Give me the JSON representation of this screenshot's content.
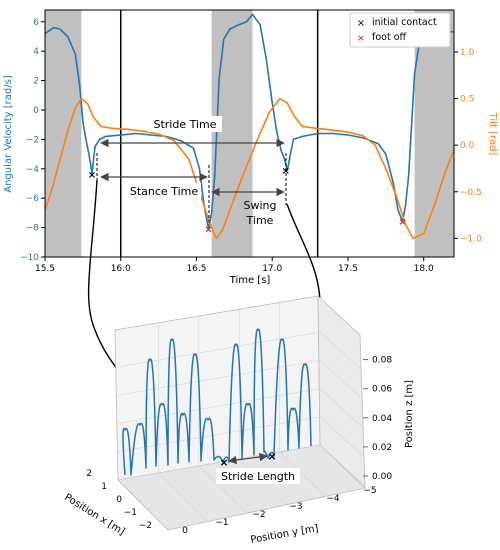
{
  "chart_data": [
    {
      "type": "line",
      "xlabel": "Time [s]",
      "ylabel": "Angular Velocity [rad/s]",
      "y2label": "Tilt [rad]",
      "xlim": [
        15.5,
        18.2
      ],
      "ylim": [
        -10,
        6.8
      ],
      "y2lim": [
        -1.2,
        1.45
      ],
      "xticks": [
        15.5,
        16.0,
        16.5,
        17.0,
        17.5,
        18.0
      ],
      "xtick_labels": [
        "15.5",
        "16.0",
        "16.5",
        "17.0",
        "17.5",
        "18.0"
      ],
      "yticks": [
        -10,
        -8,
        -6,
        -4,
        -2,
        0,
        2,
        4,
        6
      ],
      "ytick_labels": [
        "−10",
        "−8",
        "−6",
        "−4",
        "−2",
        "0",
        "2",
        "4",
        "6"
      ],
      "y2ticks": [
        -1.0,
        -0.5,
        0.0,
        0.5,
        1.0
      ],
      "y2tick_labels": [
        "−1.0",
        "−0.5",
        "0.0",
        "0.5",
        "1.0"
      ],
      "shaded_regions": [
        [
          15.5,
          15.74
        ],
        [
          16.6,
          16.87
        ],
        [
          17.94,
          18.2
        ]
      ],
      "vertical_lines": [
        16.0,
        17.3
      ],
      "series": [
        {
          "color": "#1f77b4",
          "axis": "left",
          "x": [
            15.5,
            15.56,
            15.6,
            15.65,
            15.7,
            15.73,
            15.75,
            15.77,
            15.79,
            15.81,
            15.83,
            15.86,
            15.9,
            16.0,
            16.1,
            16.2,
            16.3,
            16.4,
            16.48,
            16.52,
            16.55,
            16.58,
            16.6,
            16.62,
            16.65,
            16.68,
            16.72,
            16.78,
            16.83,
            16.87,
            16.92,
            16.96,
            17.0,
            17.03,
            17.06,
            17.08,
            17.1,
            17.12,
            17.14,
            17.2,
            17.3,
            17.4,
            17.5,
            17.6,
            17.7,
            17.75,
            17.8,
            17.83,
            17.86,
            17.88,
            17.9,
            17.92,
            17.94,
            17.97,
            18.0,
            18.05,
            18.1,
            18.15,
            18.2
          ],
          "y": [
            5.2,
            5.6,
            5.5,
            5.0,
            3.8,
            1.6,
            -0.8,
            -2.0,
            -3.0,
            -4.3,
            -2.5,
            -2.0,
            -1.8,
            -1.7,
            -1.6,
            -1.7,
            -1.8,
            -2.1,
            -2.6,
            -4.0,
            -6.5,
            -8.1,
            -7.0,
            -4.5,
            2.2,
            4.8,
            5.5,
            5.8,
            6.0,
            6.5,
            5.8,
            3.5,
            0.5,
            -1.5,
            -2.8,
            -3.3,
            -4.1,
            -3.0,
            -2.0,
            -1.8,
            -1.6,
            -1.6,
            -1.7,
            -1.9,
            -2.3,
            -3.0,
            -5.0,
            -6.8,
            -7.6,
            -6.5,
            -4.5,
            -1.0,
            2.5,
            4.5,
            5.0,
            5.4,
            5.5,
            5.4,
            5.3
          ]
        },
        {
          "color": "#ff7f0e",
          "axis": "right",
          "x": [
            15.5,
            15.55,
            15.6,
            15.65,
            15.7,
            15.74,
            15.78,
            15.82,
            15.87,
            15.95,
            16.05,
            16.15,
            16.25,
            16.35,
            16.45,
            16.52,
            16.58,
            16.63,
            16.67,
            16.72,
            16.8,
            16.9,
            16.98,
            17.05,
            17.1,
            17.15,
            17.2,
            17.3,
            17.4,
            17.5,
            17.6,
            17.68,
            17.75,
            17.82,
            17.88,
            17.93,
            18.0,
            18.07,
            18.14,
            18.2
          ],
          "y": [
            -0.7,
            -0.45,
            -0.15,
            0.15,
            0.4,
            0.5,
            0.45,
            0.3,
            0.2,
            0.18,
            0.17,
            0.15,
            0.12,
            0.05,
            -0.15,
            -0.5,
            -0.8,
            -1.0,
            -0.92,
            -0.7,
            -0.35,
            0.05,
            0.35,
            0.5,
            0.45,
            0.3,
            0.2,
            0.18,
            0.16,
            0.14,
            0.1,
            0.0,
            -0.25,
            -0.55,
            -0.85,
            -1.0,
            -0.95,
            -0.65,
            -0.3,
            -0.05
          ]
        }
      ],
      "markers": [
        {
          "legend": "initial contact",
          "symbol": "x",
          "color": "#000000",
          "points": [
            [
              15.81,
              -4.4
            ],
            [
              17.09,
              -4.1
            ]
          ]
        },
        {
          "legend": "foot off",
          "symbol": "x",
          "color": "#d62728",
          "points": [
            [
              16.58,
              -8.1
            ],
            [
              17.86,
              -7.6
            ]
          ]
        }
      ],
      "legend_position": "top-right",
      "annotations": [
        {
          "text": "Stride Time",
          "from_x": 15.83,
          "to_x": 17.08,
          "y": -2.2
        },
        {
          "text": "Stance Time",
          "from_x": 15.83,
          "to_x": 16.57,
          "y": -4.5
        },
        {
          "text": "Swing Time",
          "from_x": 16.6,
          "to_x": 17.08,
          "y": -5.4
        }
      ]
    },
    {
      "type": "line3d",
      "xlabel": "Position x [m]",
      "ylabel": "Position y [m]",
      "zlabel": "Position z [m]",
      "xticks": [
        2,
        1,
        0,
        -1,
        -2
      ],
      "xtick_labels": [
        "2",
        "1",
        "0",
        "−1",
        "−2"
      ],
      "yticks": [
        0,
        -1,
        -2,
        -3,
        -4,
        -5
      ],
      "ytick_labels": [
        "0",
        "−1",
        "−2",
        "−3",
        "−4",
        "−5"
      ],
      "zticks": [
        0.0,
        0.02,
        0.04,
        0.06,
        0.08
      ],
      "ztick_labels": [
        "0.00",
        "0.02",
        "0.04",
        "0.06",
        "0.08"
      ],
      "annotations": [
        {
          "text": "Stride Length"
        }
      ]
    }
  ]
}
